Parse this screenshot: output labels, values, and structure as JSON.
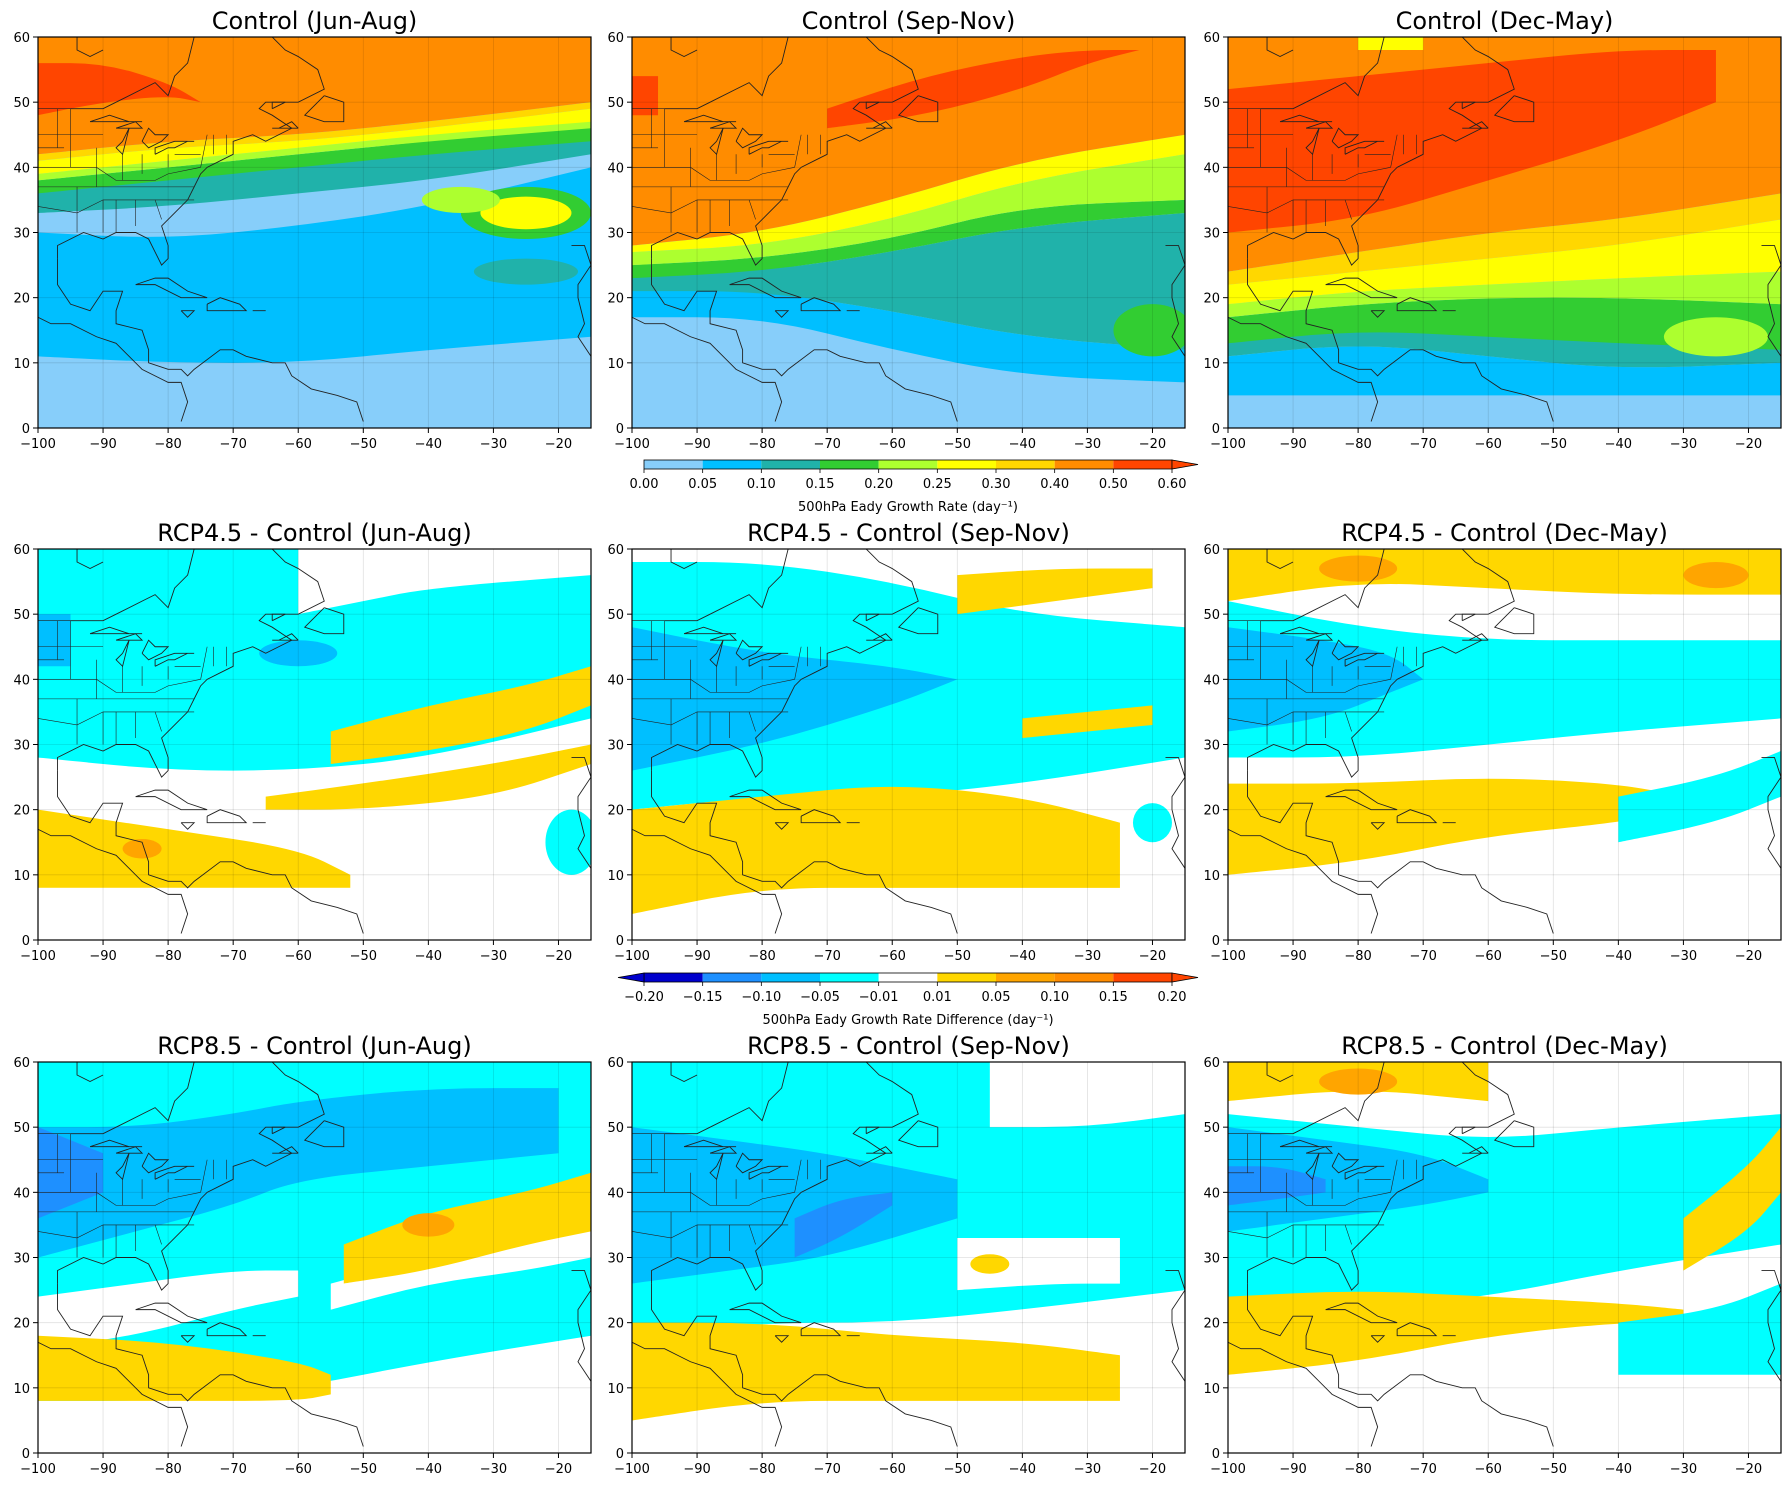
{
  "figure": {
    "panels": [
      {
        "id": "control-jja",
        "title": "Control (Jun-Aug)",
        "field": "control",
        "season": "jja"
      },
      {
        "id": "control-son",
        "title": "Control (Sep-Nov)",
        "field": "control",
        "season": "son"
      },
      {
        "id": "control-dm",
        "title": "Control (Dec-May)",
        "field": "control",
        "season": "dm"
      },
      {
        "id": "rcp45-jja",
        "title": "RCP4.5 - Control (Jun-Aug)",
        "field": "rcp45",
        "season": "jja"
      },
      {
        "id": "rcp45-son",
        "title": "RCP4.5 - Control (Sep-Nov)",
        "field": "rcp45",
        "season": "son"
      },
      {
        "id": "rcp45-dm",
        "title": "RCP4.5 - Control (Dec-May)",
        "field": "rcp45",
        "season": "dm"
      },
      {
        "id": "rcp85-jja",
        "title": "RCP8.5 - Control (Jun-Aug)",
        "field": "rcp85",
        "season": "jja"
      },
      {
        "id": "rcp85-son",
        "title": "RCP8.5 - Control (Sep-Nov)",
        "field": "rcp85",
        "season": "son"
      },
      {
        "id": "rcp85-dm",
        "title": "RCP8.5 - Control (Dec-May)",
        "field": "rcp85",
        "season": "dm"
      }
    ],
    "map_extent": {
      "lon": [
        -100,
        -15
      ],
      "lat": [
        0,
        60
      ]
    },
    "x_ticks": [
      "−100",
      "−90",
      "−80",
      "−70",
      "−60",
      "−50",
      "−40",
      "−30",
      "−20"
    ],
    "y_ticks": [
      "0",
      "10",
      "20",
      "30",
      "40",
      "50",
      "60"
    ],
    "colorbars": [
      {
        "id": "control-colorbar",
        "label": "500hPa Eady Growth Rate (day⁻¹)",
        "extend": "max",
        "ticks": [
          "0.00",
          "0.05",
          "0.10",
          "0.15",
          "0.20",
          "0.25",
          "0.30",
          "0.40",
          "0.50",
          "0.60"
        ],
        "colors": [
          "#87cefa",
          "#00bfff",
          "#20b2aa",
          "#32cd32",
          "#adff2f",
          "#ffff00",
          "#ffd700",
          "#ff8c00",
          "#ff4500"
        ]
      },
      {
        "id": "difference-colorbar",
        "label": "500hPa Eady Growth Rate Difference (day⁻¹)",
        "extend": "both",
        "ticks": [
          "−0.20",
          "−0.15",
          "−0.10",
          "−0.05",
          "−0.01",
          "0.01",
          "0.05",
          "0.10",
          "0.15",
          "0.20"
        ],
        "colors": [
          "#0000cd",
          "#1e90ff",
          "#00bfff",
          "#00ffff",
          "#ffffff",
          "#ffd700",
          "#ffa500",
          "#ff8c00",
          "#ff4500"
        ]
      }
    ]
  }
}
